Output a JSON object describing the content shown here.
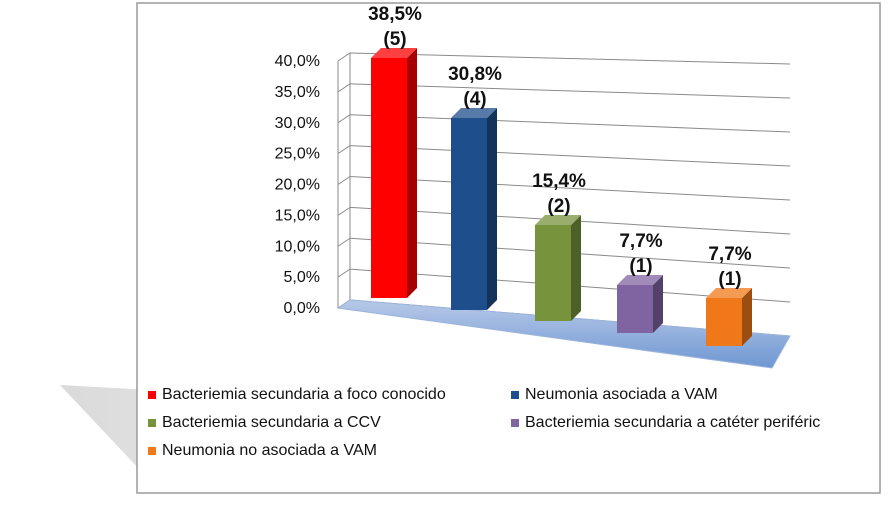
{
  "chart_data": {
    "type": "bar",
    "title": "",
    "xlabel": "",
    "ylabel": "",
    "ylim": [
      0,
      40
    ],
    "y_ticks": [
      "0,0%",
      "5,0%",
      "10,0%",
      "15,0%",
      "20,0%",
      "25,0%",
      "30,0%",
      "35,0%",
      "40,0%"
    ],
    "grid": true,
    "legend_position": "bottom",
    "bar_style": "3d",
    "categories": [
      "Bacteriemia secundaria a foco conocido",
      "Neumonia asociada a VAM",
      "Bacteriemia secundaria a CCV",
      "Bacteriemia secundaria a catéter periféric",
      "Neumonia no asociada a VAM"
    ],
    "values": [
      38.5,
      30.8,
      15.4,
      7.7,
      7.7
    ],
    "counts": [
      5,
      4,
      2,
      1,
      1
    ],
    "value_labels": [
      "38,5%",
      "30,8%",
      "15,4%",
      "7,7%",
      "7,7%"
    ],
    "count_labels": [
      "(5)",
      "(4)",
      "(2)",
      "(1)",
      "(1)"
    ],
    "colors": [
      "#ff0000",
      "#1f4e8c",
      "#77933c",
      "#8064a2",
      "#f07818"
    ]
  }
}
